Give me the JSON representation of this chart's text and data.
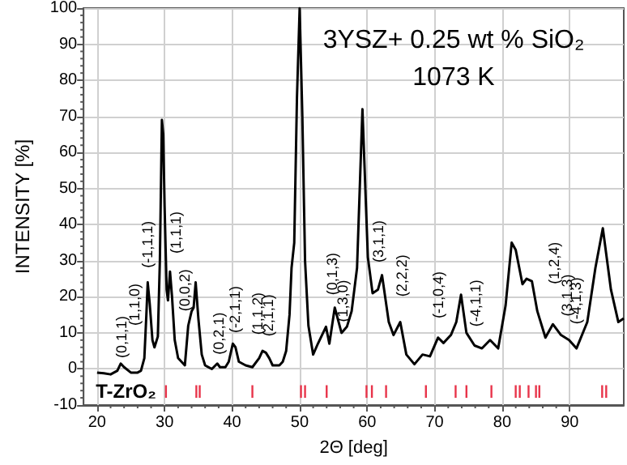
{
  "chart_data": {
    "type": "line",
    "title": "3YSZ+ 0.25 wt % SiO₂",
    "subtitle": "1073 K",
    "xlabel": "2Θ [deg]",
    "ylabel": "INTENSITY [%]",
    "xlim": [
      18,
      98
    ],
    "xticks": [
      20,
      30,
      40,
      50,
      60,
      70,
      80,
      90
    ],
    "ylim": [
      -10,
      100
    ],
    "yticks": [
      -10,
      0,
      10,
      20,
      30,
      40,
      50,
      60,
      70,
      80,
      90,
      100
    ],
    "grid": true,
    "legend": false,
    "marker": "none",
    "line_style": "solid",
    "series": [
      {
        "color": "#000000",
        "x": [
          20,
          21,
          22,
          23,
          23.5,
          24,
          25,
          26,
          26.5,
          27,
          27.3,
          27.5,
          27.8,
          28.2,
          28.5,
          29,
          29.3,
          29.6,
          29.8,
          30,
          30.3,
          30.5,
          30.8,
          31.1,
          31.5,
          32,
          33,
          33.5,
          34,
          34.3,
          34.6,
          35,
          35.5,
          36,
          37,
          37.8,
          38.2,
          39,
          39.5,
          40.1,
          40.5,
          41,
          42,
          43,
          44,
          44.5,
          45,
          45.5,
          46,
          47,
          47.5,
          48,
          48.5,
          48.8,
          49.2,
          49.6,
          50,
          50.4,
          50.8,
          51.3,
          52,
          52.7,
          53.9,
          54.4,
          55.2,
          56.2,
          57,
          57.7,
          58.5,
          59.3,
          60.1,
          60.8,
          61.6,
          62.2,
          63.2,
          63.9,
          64.9,
          65.8,
          67,
          68.2,
          69.3,
          70.5,
          71.3,
          72.4,
          73.2,
          73.9,
          74.7,
          75.9,
          77,
          78.2,
          79.4,
          80.5,
          81.4,
          82,
          83,
          83.6,
          84.4,
          85.2,
          86.4,
          87.5,
          88.7,
          89.9,
          91,
          92.6,
          93.8,
          94.9,
          96.1,
          97.2,
          98
        ],
        "values": [
          -1,
          -1.2,
          -1.5,
          -0.5,
          1.5,
          0.5,
          -1,
          -1,
          -0.5,
          3,
          15,
          24,
          18,
          8,
          6,
          9,
          30,
          69,
          65,
          45,
          22,
          19,
          27,
          20,
          8,
          3,
          1,
          12,
          16,
          17,
          24,
          14,
          4,
          1,
          0,
          1.5,
          0.5,
          0.5,
          2,
          7,
          6,
          2,
          1,
          0.5,
          3,
          5,
          4.5,
          3,
          1,
          1,
          2,
          5,
          15,
          28,
          35,
          75,
          100,
          70,
          30,
          12,
          4,
          7,
          11.7,
          7,
          17,
          10,
          11.7,
          16,
          28,
          72,
          31,
          21,
          22,
          26,
          13,
          9.4,
          13,
          4,
          1.3,
          4,
          3.5,
          8.7,
          7.2,
          9.4,
          13,
          20.6,
          10,
          6.5,
          5.7,
          8,
          5.7,
          17.6,
          35,
          33,
          23.5,
          25,
          24.3,
          16,
          8.7,
          12.4,
          9.4,
          8,
          5.7,
          13,
          28,
          39,
          22,
          13,
          14
        ]
      },
      {
        "type": "bar",
        "name": "T-ZrO₂",
        "color": "#e8344a",
        "x": [
          30.2,
          34.7,
          35.2,
          43.0,
          50.2,
          50.8,
          54.0,
          59.9,
          60.7,
          62.8,
          68.7,
          73.1,
          74.7,
          78.4,
          82.0,
          82.6,
          83.9,
          85.0,
          85.5,
          94.8,
          95.4
        ],
        "base": [
          -8,
          -8,
          -8,
          -8,
          -8,
          -8,
          -8,
          -8,
          -8,
          -8,
          -8,
          -8,
          -8,
          -8,
          -8,
          -8,
          -8,
          -8,
          -8,
          -8,
          -8
        ],
        "values": [
          3.5,
          3.5,
          3.5,
          3.5,
          3.5,
          3.5,
          3.5,
          3.5,
          3.5,
          3.5,
          3.5,
          3.5,
          3.5,
          3.5,
          3.5,
          3.5,
          3.5,
          3.5,
          3.5,
          3.5,
          3.5
        ]
      }
    ],
    "annotations": [
      "(0,1,1)",
      "(1,1,0)",
      "(-1,1,1)",
      "(1,1,1)",
      "(0,0,2)",
      "(0,2,1)",
      "(-2,1,1)",
      "(1,1,2)",
      "(2,1,1)",
      "(0,1,3)",
      "(1,3,0)",
      "(3,1,1)",
      "(2,2,2)",
      "(-1,0,4)",
      "(-4,1,1)",
      "(1,2,4)",
      "(3,1,3)",
      "(-4,1,3)"
    ]
  }
}
